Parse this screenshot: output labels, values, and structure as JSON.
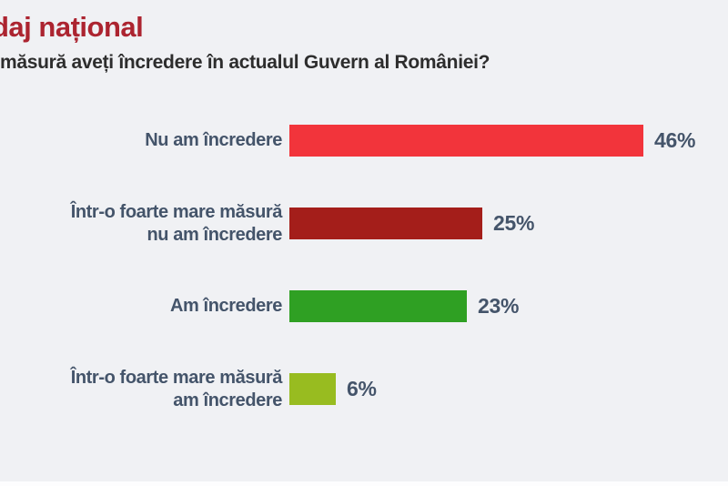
{
  "page": {
    "background_color": "#F0F1F4",
    "bottom_strip_color": "#FDFDFE",
    "title": "daj național",
    "title_color": "#AC2430",
    "question": "măsură aveți încredere în actualul Guvern al României?",
    "question_color": "#2D2D2D",
    "label_color": "#44546A"
  },
  "chart_data": {
    "type": "bar",
    "orientation": "horizontal",
    "title": "daj național",
    "question": "măsură aveți încredere în actualul Guvern al României?",
    "categories": [
      "Nu am încredere",
      "Într-o foarte mare măsură nu am încredere",
      "Am încredere",
      "Într-o foarte mare măsură am încredere"
    ],
    "category_lines": [
      [
        "Nu am încredere"
      ],
      [
        "Într-o foarte mare măsură",
        "nu am încredere"
      ],
      [
        "Am încredere"
      ],
      [
        "Într-o foarte mare măsură",
        "am încredere"
      ]
    ],
    "values": [
      46,
      25,
      23,
      6
    ],
    "value_labels": [
      "46%",
      "25%",
      "23%",
      "6%"
    ],
    "bar_colors": [
      "#F2343B",
      "#A41E1A",
      "#2FA023",
      "#98BC20"
    ],
    "unit": "%",
    "xlim": [
      0,
      47
    ],
    "grid": false,
    "legend": false,
    "value_label_position": "right-of-bar"
  }
}
